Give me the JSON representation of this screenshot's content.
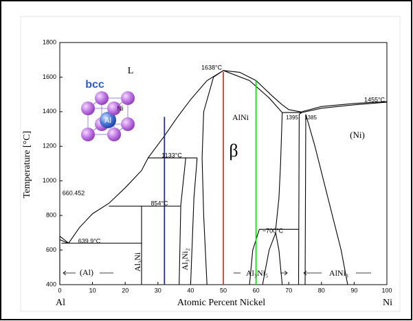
{
  "chart_data": {
    "type": "phase-diagram",
    "xlabel": "Atomic Percent Nickel",
    "ylabel": "Temperature [°C]",
    "left_label": "Al",
    "right_label": "Ni",
    "xlim": [
      0,
      100
    ],
    "ylim": [
      400,
      1800
    ],
    "xticks": [
      0,
      10,
      20,
      30,
      40,
      50,
      60,
      70,
      80,
      90,
      100
    ],
    "yticks": [
      400,
      600,
      800,
      1000,
      1200,
      1400,
      1600,
      1800
    ],
    "annotations": [
      {
        "text": "L"
      },
      {
        "text": "1638°C"
      },
      {
        "text": "AlNi"
      },
      {
        "text": "β"
      },
      {
        "text": "(Ni)"
      },
      {
        "text": "1395"
      },
      {
        "text": "1385"
      },
      {
        "text": "1455°C"
      },
      {
        "text": "1133°C"
      },
      {
        "text": "854°C"
      },
      {
        "text": "660.452"
      },
      {
        "text": "639.9°C"
      },
      {
        "text": "~700°C"
      },
      {
        "text": "(Al)"
      },
      {
        "text": "Al₃Ni"
      },
      {
        "text": "Al₃Ni₂"
      },
      {
        "text": "Al₃Ni₅"
      },
      {
        "text": "AlNi₃"
      }
    ],
    "inset": {
      "title": "bcc",
      "corner_atom": "Ni",
      "center_atom": "Al"
    },
    "vertical_lines": [
      {
        "x": 32,
        "top": 1370,
        "color": "#1f2a9e"
      },
      {
        "x": 50,
        "top": 1630,
        "color": "#e8341c"
      },
      {
        "x": 60,
        "top": 1580,
        "color": "#22cc22"
      }
    ],
    "boundaries": [
      {
        "x": [
          0,
          1.5,
          2.7,
          6,
          10,
          15,
          20,
          25,
          27,
          32,
          36,
          40,
          45,
          50,
          55,
          60,
          65,
          68,
          70,
          74
        ],
        "y": [
          660,
          648,
          640,
          730,
          810,
          870,
          960,
          1060,
          1133,
          1260,
          1370,
          1470,
          1580,
          1638,
          1628,
          1580,
          1490,
          1440,
          1412,
          1398
        ]
      },
      {
        "x": [
          0,
          0,
          2.7
        ],
        "y": [
          400,
          680,
          640
        ]
      },
      {
        "x": [
          0.5,
          2.7,
          25
        ],
        "y": [
          640,
          640,
          640
        ]
      },
      {
        "x": [
          15,
          37
        ],
        "y": [
          854,
          854
        ]
      },
      {
        "x": [
          27,
          42
        ],
        "y": [
          1133,
          1133
        ]
      },
      {
        "x": [
          25,
          25
        ],
        "y": [
          400,
          854
        ]
      },
      {
        "x": [
          36.5,
          37,
          38.5
        ],
        "y": [
          400,
          860,
          1133
        ]
      },
      {
        "x": [
          40,
          41,
          42
        ],
        "y": [
          400,
          900,
          1133
        ]
      },
      {
        "x": [
          45,
          44,
          43.5,
          44,
          47,
          50
        ],
        "y": [
          400,
          800,
          1133,
          1400,
          1600,
          1638
        ]
      },
      {
        "x": [
          50,
          58,
          64,
          68
        ],
        "y": [
          1638,
          1580,
          1480,
          1395
        ]
      },
      {
        "x": [
          68,
          67.5,
          67,
          66
        ],
        "y": [
          1395,
          1100,
          900,
          720
        ]
      },
      {
        "x": [
          58,
          59,
          61
        ],
        "y": [
          400,
          600,
          720
        ]
      },
      {
        "x": [
          62,
          64,
          66,
          67,
          68
        ],
        "y": [
          400,
          600,
          700,
          600,
          400
        ]
      },
      {
        "x": [
          61,
          73
        ],
        "y": [
          720,
          720
        ]
      },
      {
        "x": [
          68,
          74
        ],
        "y": [
          1395,
          1395
        ]
      },
      {
        "x": [
          73,
          73.2,
          74
        ],
        "y": [
          400,
          1385,
          1395
        ]
      },
      {
        "x": [
          75,
          75.2
        ],
        "y": [
          400,
          1385
        ]
      },
      {
        "x": [
          75.2,
          78,
          82,
          86,
          88
        ],
        "y": [
          1385,
          1200,
          900,
          600,
          400
        ]
      },
      {
        "x": [
          74,
          80,
          90,
          100
        ],
        "y": [
          1395,
          1420,
          1440,
          1455
        ]
      },
      {
        "x": [
          74,
          80,
          90,
          100
        ],
        "y": [
          1400,
          1430,
          1448,
          1458
        ]
      }
    ]
  }
}
